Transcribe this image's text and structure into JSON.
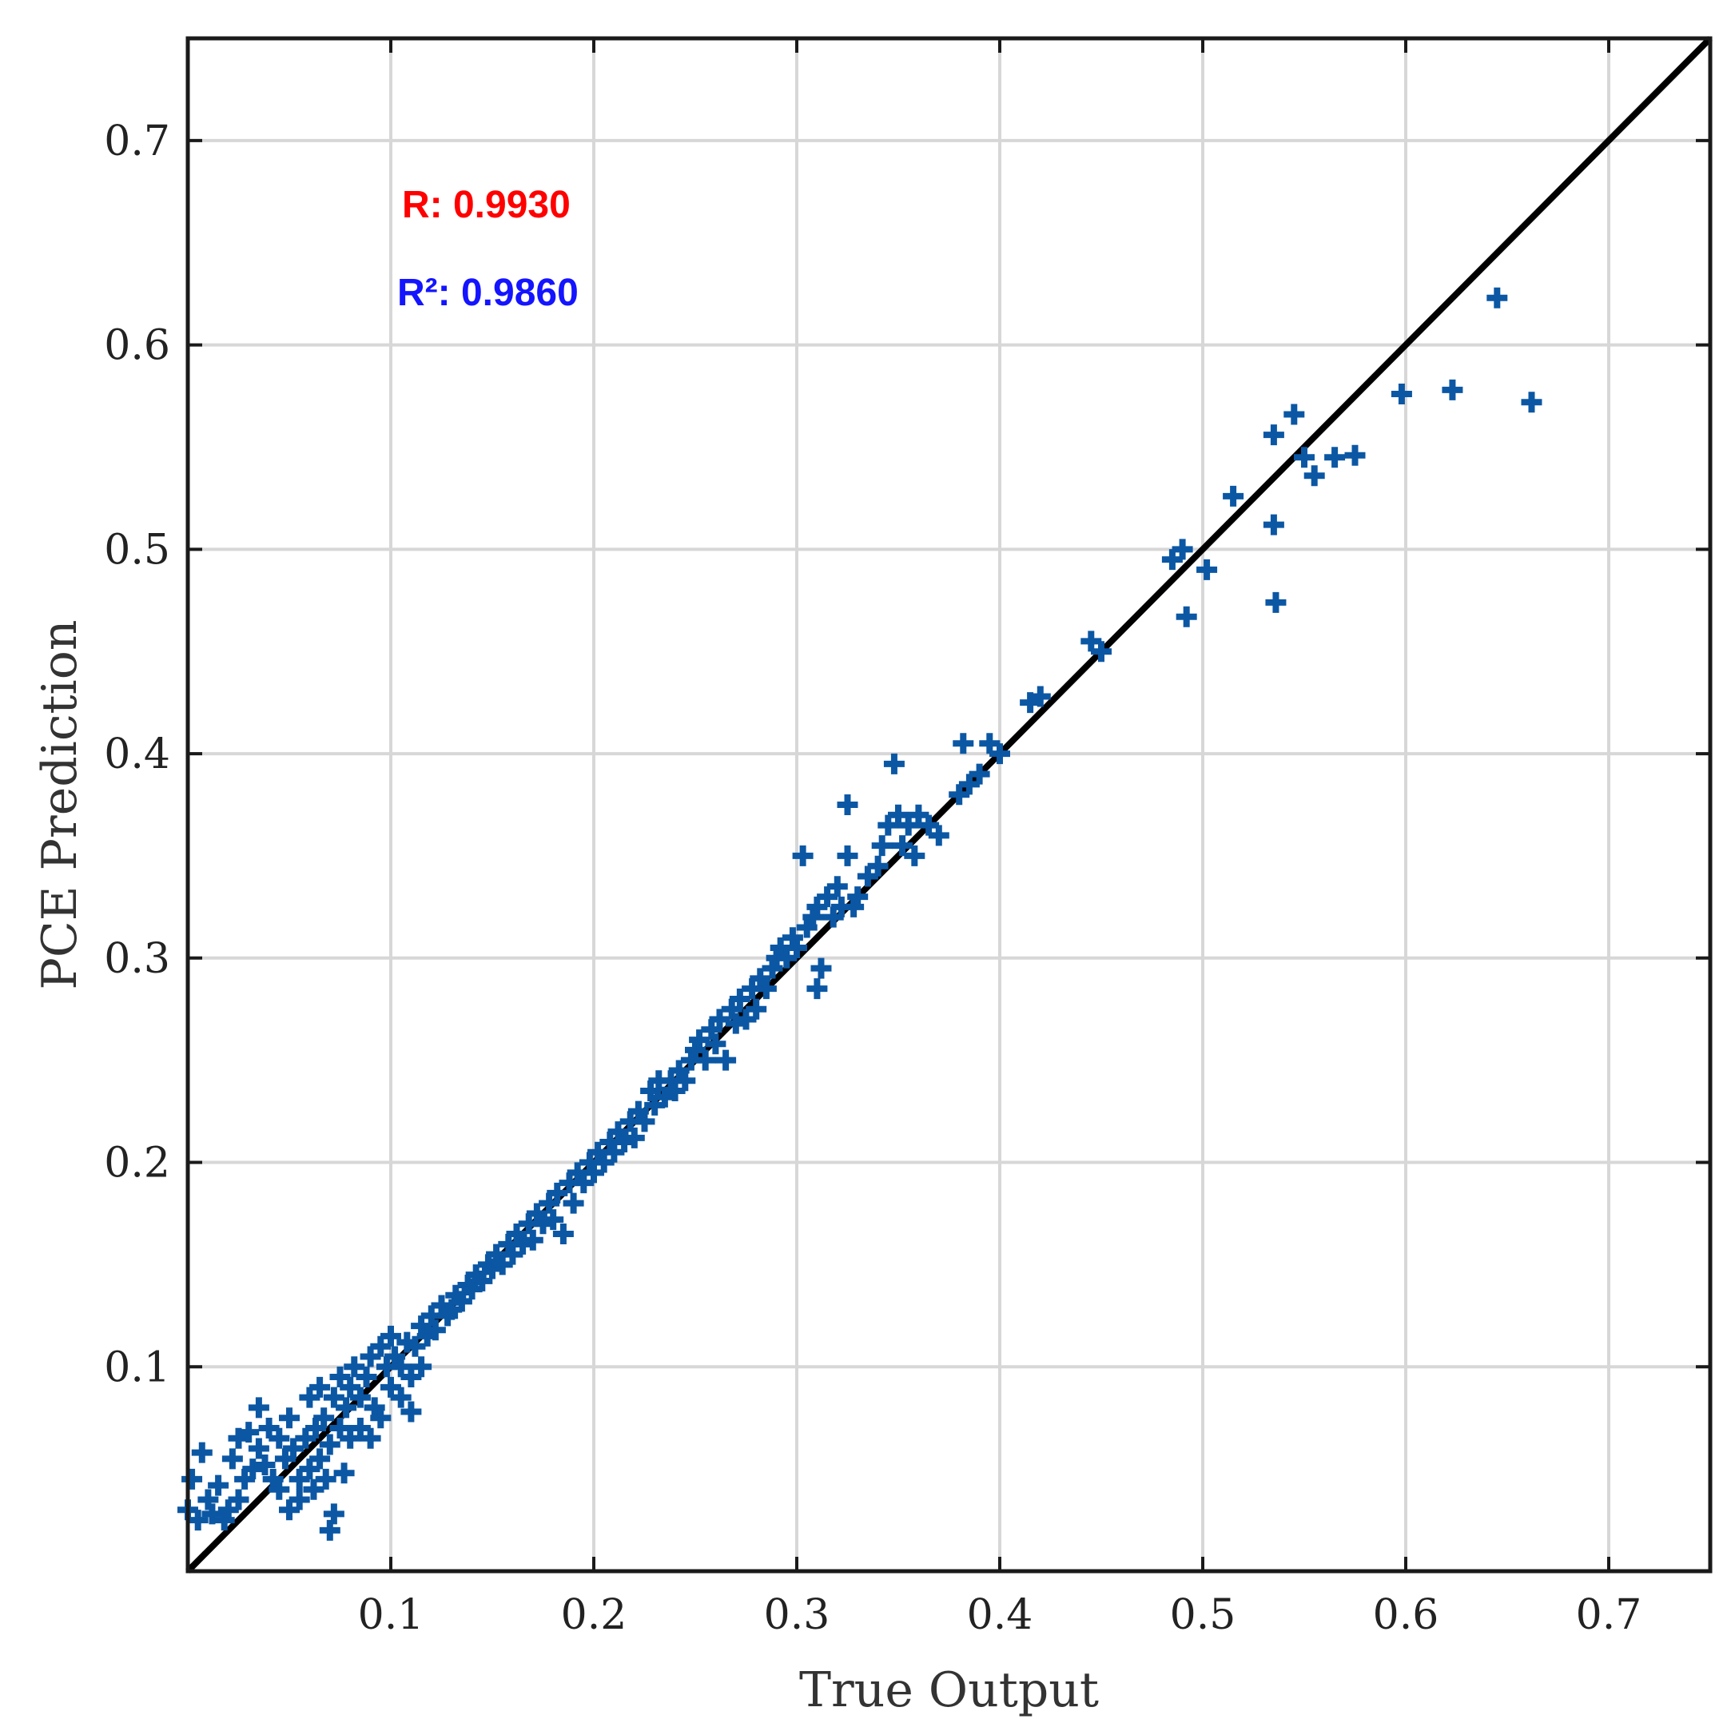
{
  "colors": {
    "marker": "#0b57a4",
    "fit_line": "#000000",
    "grid": "#d7d7d7",
    "axes": "#1a1a1a",
    "r_text": "#ff0000",
    "r2_text": "#1414ff"
  },
  "annotations": {
    "r_label": "R: 0.9930",
    "r2_label": "R²: 0.9860"
  },
  "chart_data": {
    "type": "scatter",
    "title": "",
    "xlabel": "True Output",
    "ylabel": "PCE Prediction",
    "xlim": [
      0.0,
      0.75
    ],
    "ylim": [
      0.0,
      0.75
    ],
    "xticks": [
      0.1,
      0.2,
      0.3,
      0.4,
      0.5,
      0.6,
      0.7
    ],
    "yticks": [
      0.1,
      0.2,
      0.3,
      0.4,
      0.5,
      0.6,
      0.7
    ],
    "xtick_labels": [
      "0.1",
      "0.2",
      "0.3",
      "0.4",
      "0.5",
      "0.6",
      "0.7"
    ],
    "ytick_labels": [
      "0.1",
      "0.2",
      "0.3",
      "0.4",
      "0.5",
      "0.6",
      "0.7"
    ],
    "grid": true,
    "marker": "plus",
    "reference_line": {
      "x": [
        0.0,
        0.75
      ],
      "y": [
        0.0,
        0.75
      ]
    },
    "points": [
      [
        0.0,
        0.03
      ],
      [
        0.002,
        0.045
      ],
      [
        0.005,
        0.025
      ],
      [
        0.007,
        0.058
      ],
      [
        0.01,
        0.035
      ],
      [
        0.012,
        0.028
      ],
      [
        0.015,
        0.042
      ],
      [
        0.018,
        0.025
      ],
      [
        0.02,
        0.03
      ],
      [
        0.022,
        0.055
      ],
      [
        0.025,
        0.035
      ],
      [
        0.025,
        0.065
      ],
      [
        0.028,
        0.045
      ],
      [
        0.03,
        0.068
      ],
      [
        0.032,
        0.05
      ],
      [
        0.035,
        0.06
      ],
      [
        0.035,
        0.08
      ],
      [
        0.038,
        0.052
      ],
      [
        0.04,
        0.07
      ],
      [
        0.042,
        0.045
      ],
      [
        0.045,
        0.065
      ],
      [
        0.045,
        0.04
      ],
      [
        0.048,
        0.055
      ],
      [
        0.05,
        0.03
      ],
      [
        0.05,
        0.075
      ],
      [
        0.052,
        0.06
      ],
      [
        0.055,
        0.045
      ],
      [
        0.055,
        0.035
      ],
      [
        0.058,
        0.065
      ],
      [
        0.06,
        0.05
      ],
      [
        0.06,
        0.085
      ],
      [
        0.062,
        0.04
      ],
      [
        0.063,
        0.07
      ],
      [
        0.065,
        0.055
      ],
      [
        0.065,
        0.09
      ],
      [
        0.067,
        0.075
      ],
      [
        0.068,
        0.045
      ],
      [
        0.07,
        0.02
      ],
      [
        0.07,
        0.062
      ],
      [
        0.072,
        0.085
      ],
      [
        0.072,
        0.028
      ],
      [
        0.075,
        0.07
      ],
      [
        0.075,
        0.095
      ],
      [
        0.077,
        0.048
      ],
      [
        0.078,
        0.08
      ],
      [
        0.08,
        0.09
      ],
      [
        0.08,
        0.065
      ],
      [
        0.082,
        0.1
      ],
      [
        0.085,
        0.085
      ],
      [
        0.085,
        0.07
      ],
      [
        0.088,
        0.095
      ],
      [
        0.09,
        0.105
      ],
      [
        0.09,
        0.065
      ],
      [
        0.092,
        0.08
      ],
      [
        0.095,
        0.11
      ],
      [
        0.095,
        0.075
      ],
      [
        0.098,
        0.1
      ],
      [
        0.1,
        0.115
      ],
      [
        0.1,
        0.09
      ],
      [
        0.102,
        0.105
      ],
      [
        0.105,
        0.085
      ],
      [
        0.105,
        0.1
      ],
      [
        0.108,
        0.112
      ],
      [
        0.11,
        0.095
      ],
      [
        0.11,
        0.078
      ],
      [
        0.112,
        0.11
      ],
      [
        0.115,
        0.12
      ],
      [
        0.115,
        0.1
      ],
      [
        0.118,
        0.115
      ],
      [
        0.12,
        0.125
      ],
      [
        0.122,
        0.118
      ],
      [
        0.125,
        0.13
      ],
      [
        0.128,
        0.125
      ],
      [
        0.13,
        0.128
      ],
      [
        0.132,
        0.135
      ],
      [
        0.135,
        0.132
      ],
      [
        0.138,
        0.14
      ],
      [
        0.14,
        0.138
      ],
      [
        0.142,
        0.145
      ],
      [
        0.145,
        0.142
      ],
      [
        0.148,
        0.15
      ],
      [
        0.15,
        0.148
      ],
      [
        0.152,
        0.155
      ],
      [
        0.155,
        0.15
      ],
      [
        0.158,
        0.16
      ],
      [
        0.16,
        0.155
      ],
      [
        0.162,
        0.165
      ],
      [
        0.165,
        0.16
      ],
      [
        0.168,
        0.17
      ],
      [
        0.17,
        0.162
      ],
      [
        0.172,
        0.175
      ],
      [
        0.175,
        0.17
      ],
      [
        0.178,
        0.18
      ],
      [
        0.18,
        0.172
      ],
      [
        0.182,
        0.185
      ],
      [
        0.185,
        0.165
      ],
      [
        0.188,
        0.19
      ],
      [
        0.19,
        0.18
      ],
      [
        0.192,
        0.195
      ],
      [
        0.195,
        0.19
      ],
      [
        0.198,
        0.2
      ],
      [
        0.2,
        0.195
      ],
      [
        0.202,
        0.205
      ],
      [
        0.205,
        0.2
      ],
      [
        0.208,
        0.21
      ],
      [
        0.21,
        0.205
      ],
      [
        0.212,
        0.215
      ],
      [
        0.215,
        0.21
      ],
      [
        0.218,
        0.22
      ],
      [
        0.22,
        0.212
      ],
      [
        0.222,
        0.225
      ],
      [
        0.225,
        0.22
      ],
      [
        0.228,
        0.235
      ],
      [
        0.23,
        0.228
      ],
      [
        0.232,
        0.24
      ],
      [
        0.235,
        0.232
      ],
      [
        0.238,
        0.24
      ],
      [
        0.24,
        0.235
      ],
      [
        0.242,
        0.245
      ],
      [
        0.245,
        0.24
      ],
      [
        0.248,
        0.25
      ],
      [
        0.25,
        0.255
      ],
      [
        0.252,
        0.26
      ],
      [
        0.255,
        0.25
      ],
      [
        0.258,
        0.265
      ],
      [
        0.26,
        0.258
      ],
      [
        0.262,
        0.27
      ],
      [
        0.265,
        0.25
      ],
      [
        0.268,
        0.275
      ],
      [
        0.27,
        0.268
      ],
      [
        0.272,
        0.28
      ],
      [
        0.275,
        0.27
      ],
      [
        0.278,
        0.285
      ],
      [
        0.28,
        0.275
      ],
      [
        0.282,
        0.29
      ],
      [
        0.285,
        0.285
      ],
      [
        0.288,
        0.295
      ],
      [
        0.29,
        0.3
      ],
      [
        0.292,
        0.305
      ],
      [
        0.295,
        0.3
      ],
      [
        0.298,
        0.31
      ],
      [
        0.3,
        0.305
      ],
      [
        0.303,
        0.35
      ],
      [
        0.305,
        0.315
      ],
      [
        0.308,
        0.32
      ],
      [
        0.31,
        0.325
      ],
      [
        0.31,
        0.285
      ],
      [
        0.312,
        0.295
      ],
      [
        0.315,
        0.33
      ],
      [
        0.318,
        0.32
      ],
      [
        0.32,
        0.335
      ],
      [
        0.322,
        0.325
      ],
      [
        0.325,
        0.375
      ],
      [
        0.325,
        0.35
      ],
      [
        0.328,
        0.325
      ],
      [
        0.33,
        0.33
      ],
      [
        0.335,
        0.34
      ],
      [
        0.34,
        0.345
      ],
      [
        0.342,
        0.355
      ],
      [
        0.345,
        0.365
      ],
      [
        0.348,
        0.395
      ],
      [
        0.35,
        0.37
      ],
      [
        0.352,
        0.355
      ],
      [
        0.355,
        0.365
      ],
      [
        0.358,
        0.35
      ],
      [
        0.36,
        0.37
      ],
      [
        0.365,
        0.365
      ],
      [
        0.37,
        0.36
      ],
      [
        0.38,
        0.38
      ],
      [
        0.382,
        0.405
      ],
      [
        0.385,
        0.385
      ],
      [
        0.39,
        0.39
      ],
      [
        0.395,
        0.405
      ],
      [
        0.4,
        0.4
      ],
      [
        0.415,
        0.425
      ],
      [
        0.42,
        0.428
      ],
      [
        0.445,
        0.455
      ],
      [
        0.45,
        0.45
      ],
      [
        0.485,
        0.495
      ],
      [
        0.49,
        0.5
      ],
      [
        0.492,
        0.467
      ],
      [
        0.502,
        0.49
      ],
      [
        0.515,
        0.526
      ],
      [
        0.535,
        0.556
      ],
      [
        0.535,
        0.512
      ],
      [
        0.536,
        0.474
      ],
      [
        0.545,
        0.566
      ],
      [
        0.55,
        0.545
      ],
      [
        0.555,
        0.536
      ],
      [
        0.565,
        0.545
      ],
      [
        0.575,
        0.546
      ],
      [
        0.598,
        0.576
      ],
      [
        0.623,
        0.578
      ],
      [
        0.645,
        0.623
      ],
      [
        0.662,
        0.572
      ]
    ]
  }
}
